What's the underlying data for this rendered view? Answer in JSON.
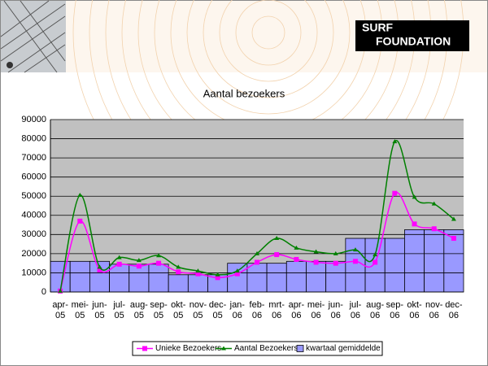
{
  "header": {
    "logo": [
      "SURF",
      "FOUNDATION"
    ]
  },
  "chart_data": {
    "type": "combo",
    "title": "Aantal bezoekers",
    "categories": [
      "apr-05",
      "mei-05",
      "jun-05",
      "jul-05",
      "aug-05",
      "sep-05",
      "okt-05",
      "nov-05",
      "dec-05",
      "jan-06",
      "feb-06",
      "mrt-06",
      "apr-06",
      "mei-06",
      "jun-06",
      "jul-06",
      "aug-06",
      "sep-06",
      "okt-06",
      "nov-06",
      "dec-06"
    ],
    "series": [
      {
        "name": "Unieke Bezoekers",
        "type": "line",
        "color": "#ff00ff",
        "marker": "square",
        "values": [
          500,
          37000,
          11500,
          14500,
          13500,
          15000,
          10500,
          9500,
          7500,
          9500,
          15500,
          19500,
          17000,
          15500,
          15000,
          16000,
          15500,
          51500,
          35500,
          33000,
          28000
        ]
      },
      {
        "name": "Aantal Bezoekers",
        "type": "line",
        "color": "#008000",
        "marker": "triangle",
        "values": [
          500,
          50500,
          13000,
          18000,
          16500,
          19000,
          13000,
          11000,
          9000,
          11000,
          20000,
          28000,
          23000,
          21000,
          20000,
          22000,
          19500,
          78500,
          49500,
          46000,
          38000
        ]
      },
      {
        "name": "kwartaal gemiddelde",
        "type": "bar",
        "color": "#9999ff",
        "values": [
          16000,
          16000,
          16000,
          14500,
          14500,
          14500,
          9000,
          9000,
          9000,
          15000,
          15000,
          15000,
          16000,
          16000,
          16000,
          28000,
          28000,
          28000,
          32500,
          32500,
          32500
        ]
      }
    ],
    "ylim": [
      0,
      90000
    ],
    "yticks": [
      0,
      10000,
      20000,
      30000,
      40000,
      50000,
      60000,
      70000,
      80000,
      90000
    ],
    "grid": true,
    "legend": "bottom"
  }
}
